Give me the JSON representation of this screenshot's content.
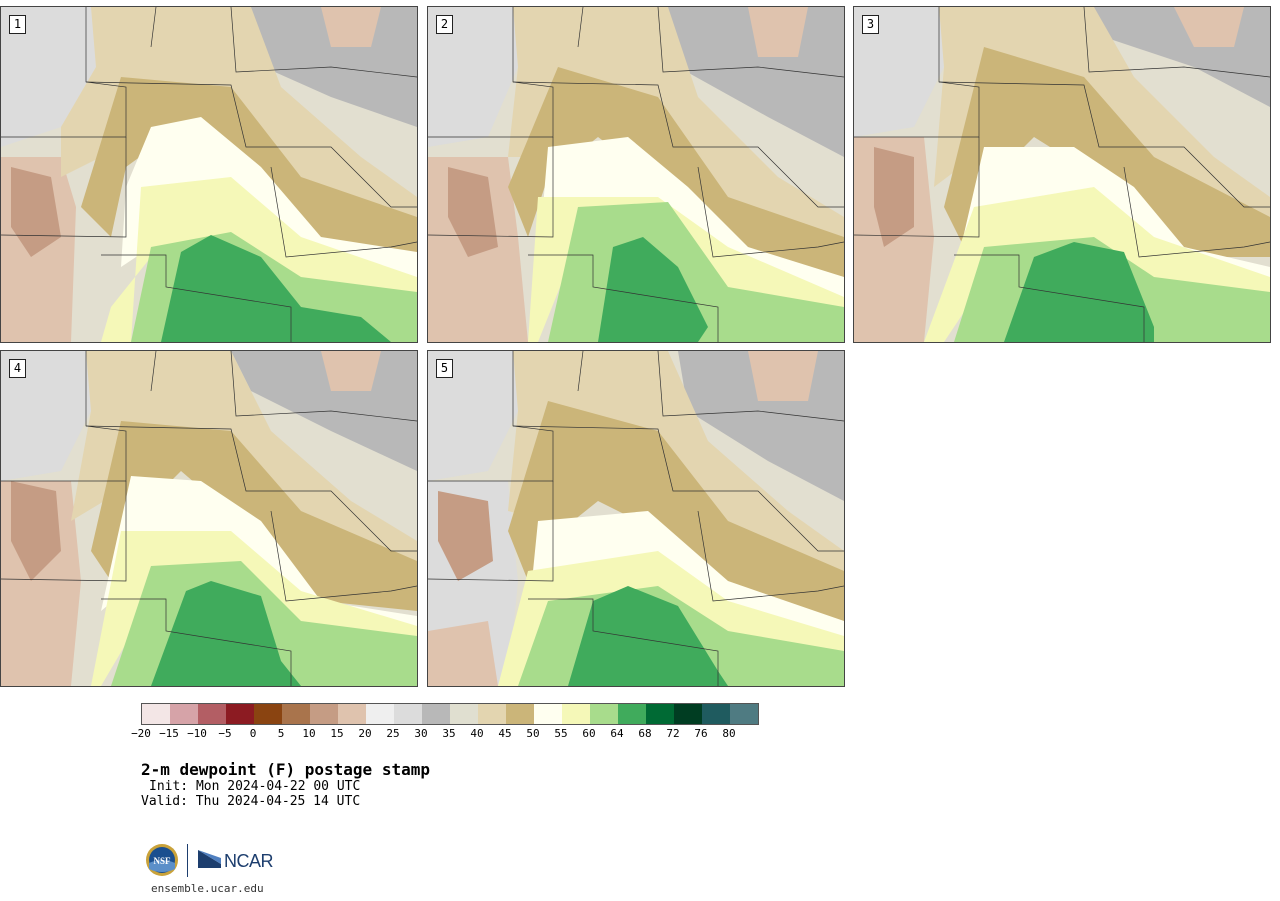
{
  "panels": [
    {
      "label": "1"
    },
    {
      "label": "2"
    },
    {
      "label": "3"
    },
    {
      "label": "4"
    },
    {
      "label": "5"
    }
  ],
  "legend": {
    "colors": [
      "#f3e6e6",
      "#d6a3a8",
      "#b35e64",
      "#8c1b22",
      "#8a4411",
      "#a9744c",
      "#c59c84",
      "#dfc3ae",
      "#efefef",
      "#dcdcdc",
      "#b8b8b8",
      "#e0dfd0",
      "#e3d5b0",
      "#cbb579",
      "#fffff0",
      "#f5f8b8",
      "#a8dc8c",
      "#40ab5c",
      "#006a34",
      "#003d22",
      "#1f5b5f",
      "#4f7b82"
    ],
    "ticks": [
      "−20",
      "−15",
      "−10",
      "−5",
      "0",
      "5",
      "10",
      "15",
      "20",
      "25",
      "30",
      "35",
      "40",
      "45",
      "50",
      "55",
      "60",
      "64",
      "68",
      "72",
      "76",
      "80"
    ]
  },
  "title": "2-m dewpoint (F) postage stamp",
  "init": "Init: Mon 2024-04-22 00 UTC",
  "valid": "Valid: Thu 2024-04-25 14 UTC",
  "site": "ensemble.ucar.edu",
  "logos": {
    "nsf": "NSF",
    "ncar": "NCAR"
  }
}
